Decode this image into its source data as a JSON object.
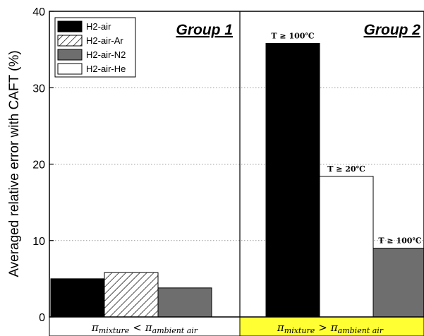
{
  "chart_data": {
    "type": "bar",
    "ylabel": "Averaged relative error with CAFT (%)",
    "ylim": [
      0,
      40
    ],
    "yticks": [
      "0",
      "10",
      "20",
      "30",
      "40"
    ],
    "grid": "horizontal dotted at 10, 20, 30",
    "legend_placement": "top-left",
    "colors": {
      "H2-air": "#000000",
      "H2-air-Ar": "#ffffff",
      "H2-air-N2": "#6e6e6e",
      "H2-air-He": "#ffffff",
      "highlight": "#ffff33"
    },
    "groups": [
      {
        "title": "Group 1",
        "condition": {
          "lhs": "π",
          "lhs_sub": "mixture",
          "op": "<",
          "rhs": "π",
          "rhs_sub": "ambient air"
        },
        "bars": [
          {
            "series": "H2-air",
            "value": 5.0,
            "label": ""
          },
          {
            "series": "H2-air-Ar",
            "value": 5.8,
            "label": ""
          },
          {
            "series": "H2-air-N2",
            "value": 3.8,
            "label": ""
          }
        ]
      },
      {
        "title": "Group 2",
        "condition": {
          "lhs": "π",
          "lhs_sub": "mixture",
          "op": ">",
          "rhs": "π",
          "rhs_sub": "ambient air"
        },
        "bars": [
          {
            "series": "H2-air",
            "value": 35.8,
            "label": "T ≥ 100℃"
          },
          {
            "series": "H2-air-He",
            "value": 18.4,
            "label": "T ≥ 20℃"
          },
          {
            "series": "H2-air-N2",
            "value": 9.0,
            "label": "T ≥ 100℃"
          }
        ]
      }
    ],
    "legend": [
      "H2-air",
      "H2-air-Ar",
      "H2-air-N2",
      "H2-air-He"
    ]
  }
}
